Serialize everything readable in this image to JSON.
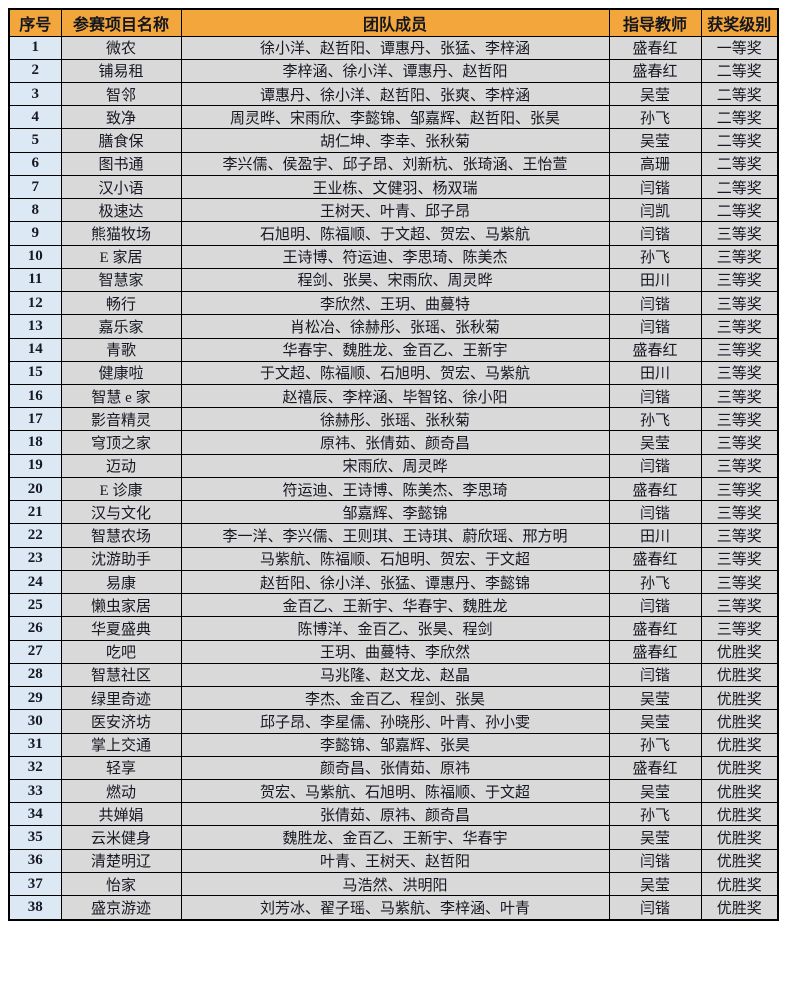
{
  "colors": {
    "header_bg": "#f2a63c",
    "index_column_bg": "#dce9f5",
    "cell_bg": "#d9d9d9",
    "border": "#000000",
    "text": "#161822"
  },
  "table": {
    "columns": [
      "序号",
      "参赛项目名称",
      "团队成员",
      "指导教师",
      "获奖级别"
    ],
    "rows": [
      {
        "no": "1",
        "project": "微农",
        "members": "徐小洋、赵哲阳、谭惠丹、张猛、李梓涵",
        "teacher": "盛春红",
        "award": "一等奖"
      },
      {
        "no": "2",
        "project": "铺易租",
        "members": "李梓涵、徐小洋、谭惠丹、赵哲阳",
        "teacher": "盛春红",
        "award": "二等奖"
      },
      {
        "no": "3",
        "project": "智邻",
        "members": "谭惠丹、徐小洋、赵哲阳、张爽、李梓涵",
        "teacher": "吴莹",
        "award": "二等奖"
      },
      {
        "no": "4",
        "project": "致净",
        "members": "周灵晔、宋雨欣、李懿锦、邹嘉辉、赵哲阳、张昊",
        "teacher": "孙飞",
        "award": "二等奖"
      },
      {
        "no": "5",
        "project": "膳食保",
        "members": "胡仁坤、李幸、张秋菊",
        "teacher": "吴莹",
        "award": "二等奖"
      },
      {
        "no": "6",
        "project": "图书通",
        "members": "李兴儒、侯盈宇、邱子昂、刘新杭、张琦涵、王怡萱",
        "teacher": "高珊",
        "award": "二等奖"
      },
      {
        "no": "7",
        "project": "汉小语",
        "members": "王业栋、文健羽、杨双瑞",
        "teacher": "闫锴",
        "award": "二等奖"
      },
      {
        "no": "8",
        "project": "极速达",
        "members": "王树天、叶青、邱子昂",
        "teacher": "闫凯",
        "award": "二等奖"
      },
      {
        "no": "9",
        "project": "熊猫牧场",
        "members": "石旭明、陈福顺、于文超、贺宏、马紫航",
        "teacher": "闫锴",
        "award": "三等奖"
      },
      {
        "no": "10",
        "project": "E 家居",
        "members": "王诗博、符运迪、李思琦、陈美杰",
        "teacher": "孙飞",
        "award": "三等奖"
      },
      {
        "no": "11",
        "project": "智慧家",
        "members": "程剑、张昊、宋雨欣、周灵晔",
        "teacher": "田川",
        "award": "三等奖"
      },
      {
        "no": "12",
        "project": "畅行",
        "members": "李欣然、王玥、曲蔓特",
        "teacher": "闫锴",
        "award": "三等奖"
      },
      {
        "no": "13",
        "project": "嘉乐家",
        "members": "肖松冶、徐赫彤、张瑶、张秋菊",
        "teacher": "闫锴",
        "award": "三等奖"
      },
      {
        "no": "14",
        "project": "青歌",
        "members": "华春宇、魏胜龙、金百乙、王新宇",
        "teacher": "盛春红",
        "award": "三等奖"
      },
      {
        "no": "15",
        "project": "健康啦",
        "members": "于文超、陈福顺、石旭明、贺宏、马紫航",
        "teacher": "田川",
        "award": "三等奖"
      },
      {
        "no": "16",
        "project": "智慧 e 家",
        "members": "赵禧辰、李梓涵、毕智铭、徐小阳",
        "teacher": "闫锴",
        "award": "三等奖"
      },
      {
        "no": "17",
        "project": "影音精灵",
        "members": "徐赫彤、张瑶、张秋菊",
        "teacher": "孙飞",
        "award": "三等奖"
      },
      {
        "no": "18",
        "project": "穹顶之家",
        "members": "原祎、张倩茹、颜奇昌",
        "teacher": "吴莹",
        "award": "三等奖"
      },
      {
        "no": "19",
        "project": "迈动",
        "members": "宋雨欣、周灵晔",
        "teacher": "闫锴",
        "award": "三等奖"
      },
      {
        "no": "20",
        "project": "E 诊康",
        "members": "符运迪、王诗博、陈美杰、李思琦",
        "teacher": "盛春红",
        "award": "三等奖"
      },
      {
        "no": "21",
        "project": "汉与文化",
        "members": "邹嘉辉、李懿锦",
        "teacher": "闫锴",
        "award": "三等奖"
      },
      {
        "no": "22",
        "project": "智慧农场",
        "members": "李一洋、李兴儒、王则琪、王诗琪、蔚欣瑶、邢方明",
        "teacher": "田川",
        "award": "三等奖"
      },
      {
        "no": "23",
        "project": "沈游助手",
        "members": "马紫航、陈福顺、石旭明、贺宏、于文超",
        "teacher": "盛春红",
        "award": "三等奖"
      },
      {
        "no": "24",
        "project": "易康",
        "members": "赵哲阳、徐小洋、张猛、谭惠丹、李懿锦",
        "teacher": "孙飞",
        "award": "三等奖"
      },
      {
        "no": "25",
        "project": "懒虫家居",
        "members": "金百乙、王新宇、华春宇、魏胜龙",
        "teacher": "闫锴",
        "award": "三等奖"
      },
      {
        "no": "26",
        "project": "华夏盛典",
        "members": "陈博洋、金百乙、张昊、程剑",
        "teacher": "盛春红",
        "award": "三等奖"
      },
      {
        "no": "27",
        "project": "吃吧",
        "members": "王玥、曲蔓特、李欣然",
        "teacher": "盛春红",
        "award": "优胜奖"
      },
      {
        "no": "28",
        "project": "智慧社区",
        "members": "马兆隆、赵文龙、赵晶",
        "teacher": "闫锴",
        "award": "优胜奖"
      },
      {
        "no": "29",
        "project": "绿里奇迹",
        "members": "李杰、金百乙、程剑、张昊",
        "teacher": "吴莹",
        "award": "优胜奖"
      },
      {
        "no": "30",
        "project": "医安济坊",
        "members": "邱子昂、李星儒、孙晓彤、叶青、孙小雯",
        "teacher": "吴莹",
        "award": "优胜奖"
      },
      {
        "no": "31",
        "project": "掌上交通",
        "members": "李懿锦、邹嘉辉、张昊",
        "teacher": "孙飞",
        "award": "优胜奖"
      },
      {
        "no": "32",
        "project": "轻享",
        "members": "颜奇昌、张倩茹、原祎",
        "teacher": "盛春红",
        "award": "优胜奖"
      },
      {
        "no": "33",
        "project": "燃动",
        "members": "贺宏、马紫航、石旭明、陈福顺、于文超",
        "teacher": "吴莹",
        "award": "优胜奖"
      },
      {
        "no": "34",
        "project": "共婵娟",
        "members": "张倩茹、原祎、颜奇昌",
        "teacher": "孙飞",
        "award": "优胜奖"
      },
      {
        "no": "35",
        "project": "云米健身",
        "members": "魏胜龙、金百乙、王新宇、华春宇",
        "teacher": "吴莹",
        "award": "优胜奖"
      },
      {
        "no": "36",
        "project": "清楚明辽",
        "members": "叶青、王树天、赵哲阳",
        "teacher": "闫锴",
        "award": "优胜奖"
      },
      {
        "no": "37",
        "project": "怡家",
        "members": "马浩然、洪明阳",
        "teacher": "吴莹",
        "award": "优胜奖"
      },
      {
        "no": "38",
        "project": "盛京游迹",
        "members": "刘芳冰、翟子瑶、马紫航、李梓涵、叶青",
        "teacher": "闫锴",
        "award": "优胜奖"
      }
    ]
  }
}
